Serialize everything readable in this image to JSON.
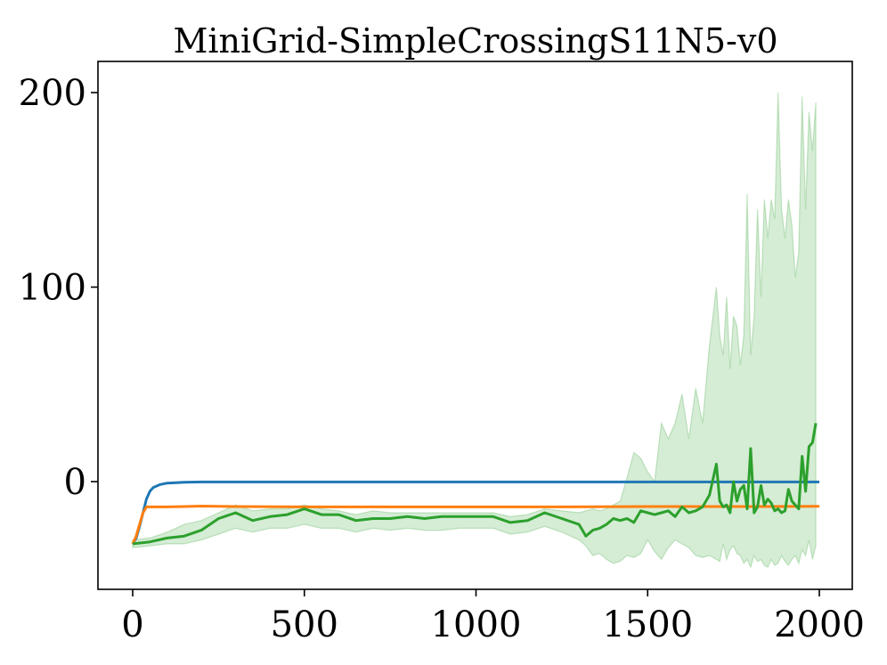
{
  "chart_data": {
    "type": "line",
    "title": "MiniGrid-SimpleCrossingS11N5-v0",
    "xlabel": "",
    "ylabel": "",
    "xlim": [
      -100,
      2100
    ],
    "ylim": [
      -55,
      217
    ],
    "xticks": [
      0,
      500,
      1000,
      1500,
      2000
    ],
    "xtick_labels": [
      "0",
      "500",
      "1000",
      "1500",
      "2000"
    ],
    "yticks": [
      0,
      100,
      200
    ],
    "ytick_labels": [
      "0",
      "100",
      "200"
    ],
    "grid": false,
    "series": [
      {
        "color": "#1f77b4",
        "x": [
          0,
          10,
          20,
          30,
          40,
          50,
          60,
          80,
          100,
          150,
          200,
          400,
          800,
          1200,
          1600,
          2000
        ],
        "y": [
          -32,
          -29,
          -23,
          -16,
          -9,
          -5,
          -3,
          -1.5,
          -0.8,
          -0.3,
          -0.2,
          -0.2,
          -0.2,
          -0.2,
          -0.2,
          -0.2
        ]
      },
      {
        "color": "#ff7f0e",
        "x": [
          0,
          10,
          20,
          30,
          40,
          60,
          100,
          150,
          200,
          300,
          500,
          800,
          1000,
          1200,
          1500,
          1800,
          2000
        ],
        "y": [
          -32,
          -28,
          -22,
          -16,
          -13,
          -13,
          -13,
          -12.8,
          -12.6,
          -12.8,
          -13,
          -13,
          -13,
          -13,
          -12.8,
          -12.8,
          -12.7
        ]
      },
      {
        "color": "#2ca02c",
        "band": true,
        "x": [
          0,
          50,
          100,
          150,
          200,
          250,
          300,
          350,
          400,
          450,
          500,
          550,
          600,
          650,
          700,
          750,
          800,
          850,
          900,
          950,
          1000,
          1050,
          1100,
          1150,
          1200,
          1250,
          1300,
          1320,
          1340,
          1360,
          1380,
          1400,
          1420,
          1440,
          1460,
          1480,
          1500,
          1520,
          1540,
          1560,
          1580,
          1600,
          1620,
          1640,
          1660,
          1680,
          1700,
          1710,
          1720,
          1730,
          1740,
          1750,
          1760,
          1770,
          1780,
          1790,
          1800,
          1810,
          1820,
          1830,
          1840,
          1850,
          1860,
          1870,
          1880,
          1890,
          1900,
          1910,
          1920,
          1930,
          1940,
          1950,
          1960,
          1970,
          1980,
          1990
        ],
        "y": [
          -32,
          -31,
          -29,
          -28,
          -25,
          -19,
          -16,
          -20,
          -18,
          -17,
          -14,
          -17,
          -17,
          -20,
          -19,
          -19,
          -18,
          -19,
          -18,
          -18,
          -18,
          -18,
          -21,
          -20,
          -16,
          -19,
          -22,
          -28,
          -25,
          -24,
          -22,
          -19,
          -20,
          -19,
          -21,
          -15,
          -16,
          -17,
          -16,
          -15,
          -18,
          -13,
          -16,
          -15,
          -13,
          -7,
          9,
          -10,
          -13,
          -12,
          -16,
          0,
          -10,
          -4,
          -2,
          -14,
          17,
          -16,
          -13,
          -2,
          -12,
          -9,
          -11,
          -15,
          -14,
          -16,
          -15,
          -4,
          -10,
          -12,
          -14,
          13,
          -5,
          18,
          20,
          30
        ],
        "upper": [
          -30,
          -29,
          -26,
          -22,
          -20,
          -16,
          -12,
          -15,
          -14,
          -14,
          -12,
          -14,
          -15,
          -17,
          -15,
          -16,
          -16,
          -16,
          -16,
          -16,
          -16,
          -16,
          -18,
          -17,
          -14,
          -15,
          -16,
          -15,
          -14,
          -15,
          -14,
          -12,
          -10,
          2,
          15,
          12,
          5,
          0,
          30,
          22,
          30,
          45,
          22,
          48,
          30,
          70,
          100,
          75,
          65,
          95,
          58,
          85,
          80,
          60,
          75,
          148,
          65,
          85,
          140,
          95,
          145,
          125,
          145,
          135,
          200,
          140,
          125,
          145,
          132,
          105,
          118,
          198,
          140,
          190,
          170,
          195
        ],
        "lower": [
          -34,
          -33,
          -32,
          -32,
          -30,
          -27,
          -24,
          -26,
          -24,
          -24,
          -22,
          -24,
          -24,
          -26,
          -24,
          -25,
          -24,
          -25,
          -25,
          -24,
          -24,
          -24,
          -27,
          -26,
          -23,
          -26,
          -30,
          -33,
          -38,
          -37,
          -40,
          -42,
          -41,
          -38,
          -39,
          -37,
          -30,
          -36,
          -40,
          -34,
          -30,
          -32,
          -34,
          -38,
          -39,
          -38,
          -40,
          -41,
          -32,
          -40,
          -35,
          -33,
          -37,
          -38,
          -42,
          -40,
          -44,
          -38,
          -41,
          -40,
          -43,
          -44,
          -40,
          -43,
          -42,
          -38,
          -41,
          -43,
          -40,
          -38,
          -42,
          -35,
          -38,
          -30,
          -40,
          -33
        ]
      }
    ]
  }
}
